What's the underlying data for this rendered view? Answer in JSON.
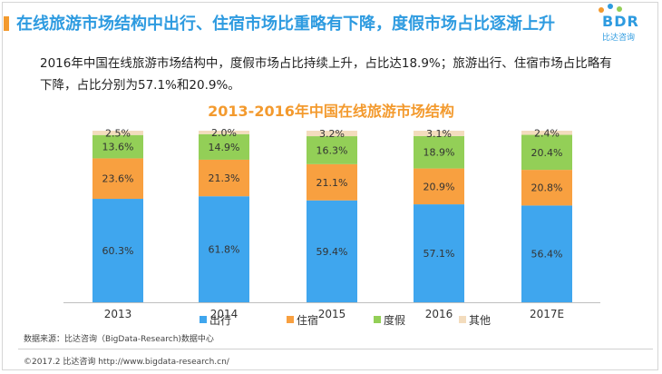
{
  "header": {
    "title": "在线旅游市场结构中出行、住宿市场比重略有下降，度假市场占比逐渐上升",
    "logo_letters": "BDR",
    "logo_sub": "比达咨询"
  },
  "summary": {
    "text": "2016年中国在线旅游市场结构中，度假市场占比持续上升，占比达18.9%；旅游出行、住宿市场占比略有下降，占比分别为57.1%和20.9%。"
  },
  "colors": {
    "travel": "#3fa6ee",
    "lodging": "#f8a040",
    "vacation": "#93cf57",
    "other": "#f3dcbd",
    "title_blue": "#2e9be0",
    "accent_orange": "#f39a2e"
  },
  "chart_data": {
    "type": "bar",
    "stacked": true,
    "title": "2013-2016年中国在线旅游市场结构",
    "categories": [
      "2013",
      "2014",
      "2015",
      "2016",
      "2017E"
    ],
    "series": [
      {
        "name": "出行",
        "values": [
          60.3,
          61.8,
          59.4,
          57.1,
          56.4
        ],
        "labels": [
          "60.3%",
          "61.8%",
          "59.4%",
          "57.1%",
          "56.4%"
        ]
      },
      {
        "name": "住宿",
        "values": [
          23.6,
          21.3,
          21.1,
          20.9,
          20.8
        ],
        "labels": [
          "23.6%",
          "21.3%",
          "21.1%",
          "20.9%",
          "20.8%"
        ]
      },
      {
        "name": "度假",
        "values": [
          13.6,
          14.9,
          16.3,
          18.9,
          20.4
        ],
        "labels": [
          "13.6%",
          "14.9%",
          "16.3%",
          "18.9%",
          "20.4%"
        ]
      },
      {
        "name": "其他",
        "values": [
          2.5,
          2.0,
          3.2,
          3.1,
          2.4
        ],
        "labels": [
          "2.5%",
          "2.0%",
          "3.2%",
          "3.1%",
          "2.4%"
        ]
      }
    ],
    "ylim": [
      0,
      100
    ],
    "unit": "%",
    "grid": false,
    "legend": "bottom"
  },
  "footer": {
    "source": "数据来源：比达咨询（BigData-Research)数据中心",
    "copyright": "©2017.2  比达咨询  http://www.bigdata-research.cn/"
  }
}
